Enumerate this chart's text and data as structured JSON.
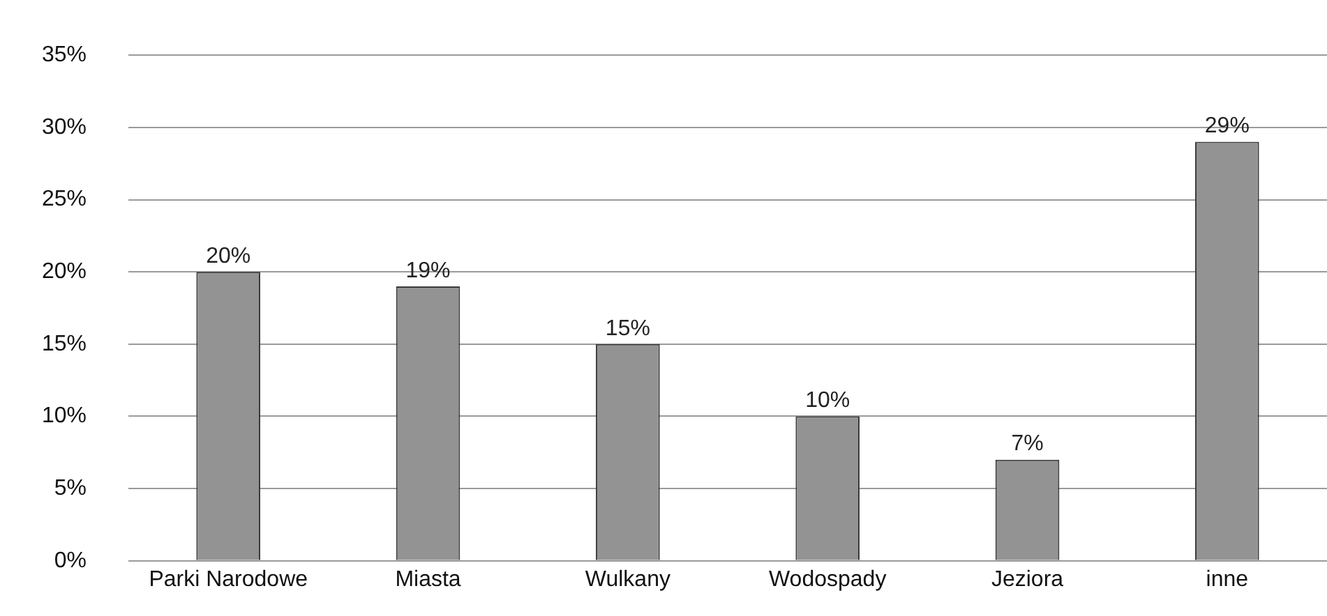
{
  "chart_data": {
    "type": "bar",
    "categories": [
      "Parki Narodowe",
      "Miasta",
      "Wulkany",
      "Wodospady",
      "Jeziora",
      "inne"
    ],
    "values": [
      20,
      19,
      15,
      10,
      7,
      29
    ],
    "color": "#939393",
    "value_labels": [
      "20%",
      "19%",
      "15%",
      "10%",
      "7%",
      "29%"
    ],
    "ylim": [
      0,
      35
    ],
    "yticks": [
      {
        "value": 0,
        "label": "0%"
      },
      {
        "value": 5,
        "label": "5%"
      },
      {
        "value": 10,
        "label": "10%"
      },
      {
        "value": 15,
        "label": "15%"
      },
      {
        "value": 20,
        "label": "20%"
      },
      {
        "value": 25,
        "label": "25%"
      },
      {
        "value": 30,
        "label": "30%"
      },
      {
        "value": 35,
        "label": "35%"
      }
    ],
    "grid": "y",
    "legend": false
  }
}
